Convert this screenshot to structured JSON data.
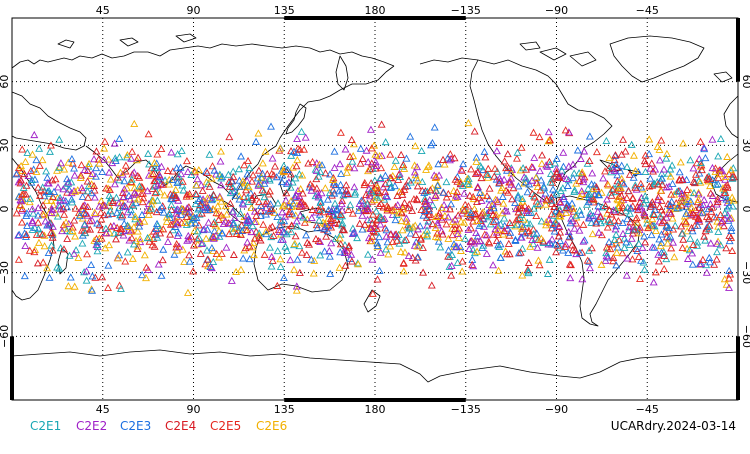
{
  "map": {
    "top_lon_labels": [
      "45",
      "90",
      "135",
      "180",
      "−135",
      "−90",
      "−45"
    ],
    "bottom_lon_labels": [
      "45",
      "90",
      "135",
      "180",
      "−135",
      "−90",
      "−45"
    ],
    "left_lat_labels": [
      "60",
      "30",
      "0",
      "−30",
      "−60"
    ],
    "right_lat_labels": [
      "60",
      "30",
      "0",
      "−30",
      "−60"
    ],
    "lon_grid_values": [
      45,
      90,
      135,
      180,
      -135,
      -90,
      -45
    ],
    "lat_grid_values": [
      60,
      30,
      0,
      -30,
      -60
    ],
    "extent": {
      "lon_min": 0,
      "lon_max": 360,
      "lat_min": -90,
      "lat_max": 90
    },
    "projection": "cylindrical equidistant, centered on 180",
    "grid": "dotted",
    "coastline_color": "#000000",
    "marker_shape": "open triangle",
    "observation_band": {
      "lat_min": -45,
      "lat_max": 45
    }
  },
  "legend": {
    "items": [
      {
        "label": "C2E1",
        "color": "#1aa7b4"
      },
      {
        "label": "C2E2",
        "color": "#a020c8"
      },
      {
        "label": "C2E3",
        "color": "#1c6fe0"
      },
      {
        "label": "C2E4",
        "color": "#d81b24"
      },
      {
        "label": "C2E5",
        "color": "#e5281f"
      },
      {
        "label": "C2E6",
        "color": "#f2b000"
      }
    ]
  },
  "footer": {
    "dataset_label": "UCARdry.2024-03-14"
  }
}
